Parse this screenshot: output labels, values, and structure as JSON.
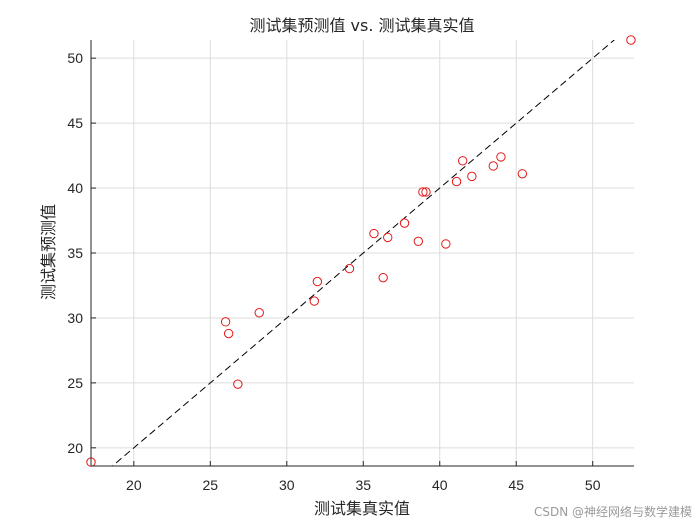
{
  "chart_data": {
    "type": "scatter",
    "title": "测试集预测值 vs. 测试集真实值",
    "xlabel": "测试集真实值",
    "ylabel": "测试集预测值",
    "xlim": [
      17.2,
      52.7
    ],
    "ylim": [
      18.6,
      51.4
    ],
    "xticks": [
      20,
      25,
      30,
      35,
      40,
      45,
      50
    ],
    "yticks": [
      20,
      25,
      30,
      35,
      40,
      45,
      50
    ],
    "grid": true,
    "marker_color": "#e31a1c",
    "reference_line": {
      "style": "dashed",
      "color": "#000000",
      "x": [
        17.2,
        52.7
      ],
      "y": [
        17.2,
        52.7
      ]
    },
    "series": [
      {
        "points": [
          [
            17.2,
            18.9
          ],
          [
            26.0,
            29.7
          ],
          [
            26.2,
            28.8
          ],
          [
            26.8,
            24.9
          ],
          [
            28.2,
            30.4
          ],
          [
            31.8,
            31.3
          ],
          [
            32.0,
            32.8
          ],
          [
            34.1,
            33.8
          ],
          [
            35.7,
            36.5
          ],
          [
            36.3,
            33.1
          ],
          [
            36.6,
            36.2
          ],
          [
            37.7,
            37.3
          ],
          [
            38.6,
            35.9
          ],
          [
            38.9,
            39.7
          ],
          [
            39.1,
            39.7
          ],
          [
            40.4,
            35.7
          ],
          [
            41.1,
            40.5
          ],
          [
            41.5,
            42.1
          ],
          [
            42.1,
            40.9
          ],
          [
            43.5,
            41.7
          ],
          [
            44.0,
            42.4
          ],
          [
            45.4,
            41.1
          ],
          [
            52.5,
            51.4
          ]
        ]
      }
    ]
  },
  "watermark": "CSDN @神经网络与数学建模"
}
